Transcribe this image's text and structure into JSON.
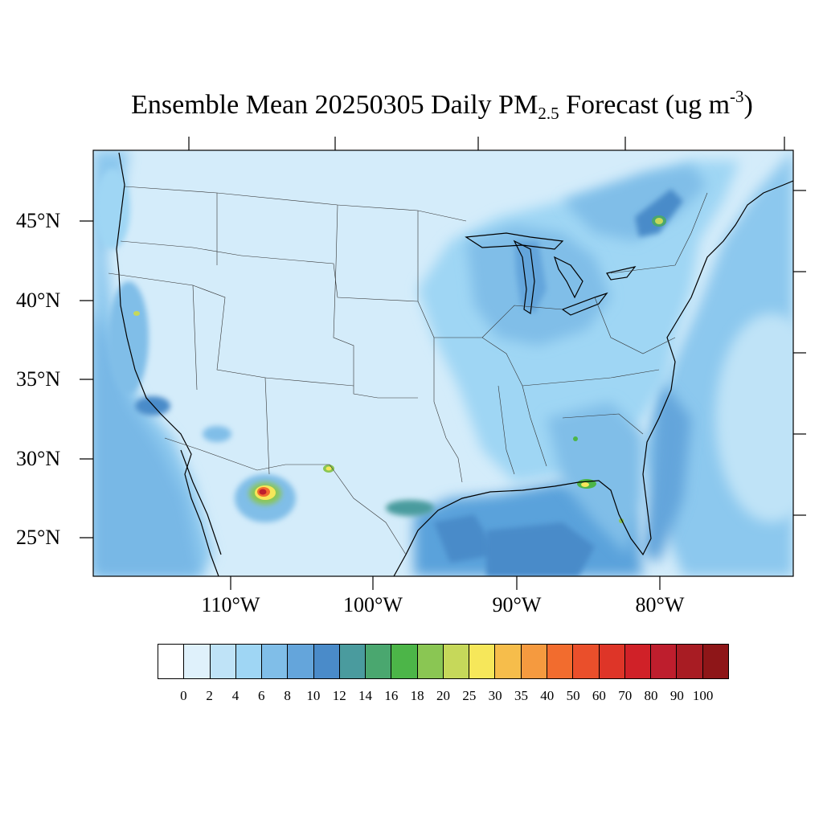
{
  "title": {
    "prefix": "Ensemble Mean 20250305 Daily PM",
    "subscript": "2.5",
    "middle": " Forecast (ug m",
    "superscript": "-3",
    "suffix": ")"
  },
  "map": {
    "projection": "Lambert conformal (CONUS)",
    "lat_ticks": [
      "45°N",
      "40°N",
      "35°N",
      "30°N",
      "25°N"
    ],
    "lon_ticks": [
      "110°W",
      "100°W",
      "90°W",
      "80°W"
    ],
    "background_level_color": "#d4ecfa",
    "ocean_color": "#8cc8ee",
    "gulf_color": "#5aa2db",
    "hotspots": [
      {
        "location": "southwest Chihuahua, Mexico",
        "level": "70-100"
      },
      {
        "location": "Florida panhandle",
        "level": "25-35"
      },
      {
        "location": "southern Quebec",
        "level": "16-25"
      },
      {
        "location": "Big Bend, Texas",
        "level": "16-30"
      },
      {
        "location": "Los Angeles basin",
        "level": "10-14"
      },
      {
        "location": "western Nevada",
        "level": "10-14"
      }
    ]
  },
  "colorbar": {
    "colors": [
      "#ffffff",
      "#dff1fb",
      "#bfe3f7",
      "#9fd6f4",
      "#80bee8",
      "#64a5db",
      "#4a8bc9",
      "#4a9b9e",
      "#4aa76f",
      "#4cb548",
      "#8ac653",
      "#c6d85a",
      "#f6e75a",
      "#f6bd4b",
      "#f59a3f",
      "#f26c2e",
      "#ea4f2b",
      "#de3528",
      "#d02128",
      "#be1e2d",
      "#a81c23",
      "#8e1618"
    ],
    "labels": [
      "0",
      "2",
      "4",
      "6",
      "8",
      "10",
      "12",
      "14",
      "16",
      "18",
      "20",
      "25",
      "30",
      "35",
      "40",
      "50",
      "60",
      "70",
      "80",
      "90",
      "100"
    ]
  }
}
